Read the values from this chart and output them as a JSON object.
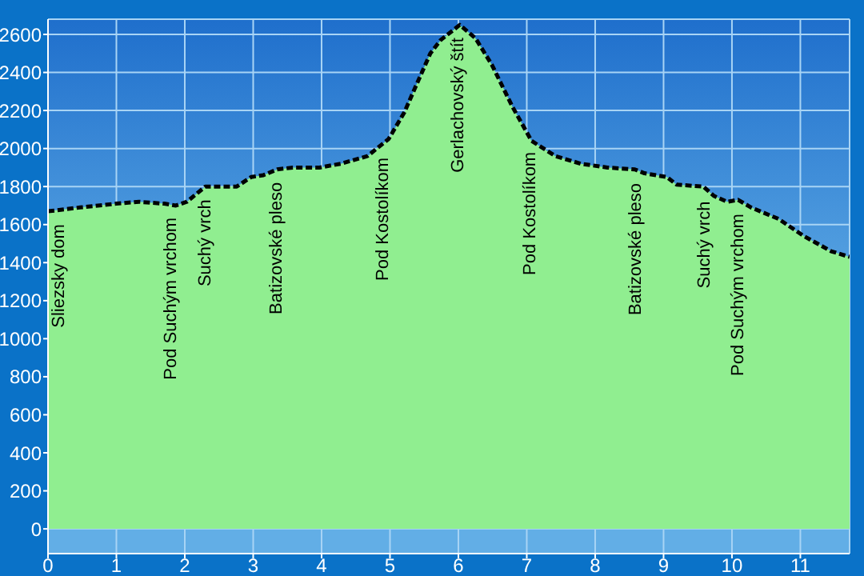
{
  "chart_data": {
    "type": "area",
    "line_style": "dashed",
    "grid": true,
    "legend": false,
    "xlim": [
      0,
      11.72
    ],
    "xticks": [
      0,
      1,
      2,
      3,
      4,
      5,
      6,
      7,
      8,
      9,
      10,
      11
    ],
    "ylim": [
      -130,
      2680
    ],
    "yticks": [
      0,
      200,
      400,
      600,
      800,
      1000,
      1200,
      1400,
      1600,
      1800,
      2000,
      2200,
      2400,
      2600
    ],
    "series": [
      {
        "color": "#90ee90",
        "x": [
          0,
          0.47,
          1.0,
          1.33,
          1.7,
          1.87,
          2.03,
          2.3,
          2.57,
          2.76,
          2.97,
          3.15,
          3.35,
          3.58,
          3.97,
          4.28,
          4.67,
          4.98,
          5.21,
          5.38,
          5.59,
          5.74,
          6.02,
          6.25,
          6.49,
          6.79,
          7.07,
          7.42,
          7.79,
          8.18,
          8.58,
          8.72,
          9.05,
          9.19,
          9.58,
          9.74,
          9.93,
          10.09,
          10.28,
          10.68,
          11.05,
          11.45,
          11.72
        ],
        "values": [
          1670,
          1690,
          1710,
          1720,
          1710,
          1700,
          1720,
          1800,
          1800,
          1800,
          1850,
          1860,
          1890,
          1900,
          1900,
          1920,
          1960,
          2050,
          2190,
          2330,
          2500,
          2570,
          2650,
          2580,
          2440,
          2220,
          2040,
          1960,
          1920,
          1900,
          1890,
          1870,
          1850,
          1810,
          1800,
          1750,
          1720,
          1730,
          1690,
          1630,
          1540,
          1460,
          1430
        ]
      }
    ],
    "annotations": [
      {
        "text": "Sliezsky dom",
        "x": 0,
        "y": 1670
      },
      {
        "text": "Pod Suchým vrchom",
        "x": 1.8,
        "y": 1705
      },
      {
        "text": "Suchý vrch",
        "x": 2.3,
        "y": 1800
      },
      {
        "text": "Batizovské pleso",
        "x": 3.35,
        "y": 1890
      },
      {
        "text": "Pod Kostolíkom",
        "x": 4.9,
        "y": 2020
      },
      {
        "text": "Gerlachovský štít",
        "x": 6.0,
        "y": 2650
      },
      {
        "text": "Pod Kostolíkom",
        "x": 7.05,
        "y": 2050
      },
      {
        "text": "Batizovské pleso",
        "x": 8.6,
        "y": 1885
      },
      {
        "text": "Suchý vrch",
        "x": 9.6,
        "y": 1790
      },
      {
        "text": "Pod Suchým vrchom",
        "x": 10.1,
        "y": 1725
      }
    ]
  }
}
